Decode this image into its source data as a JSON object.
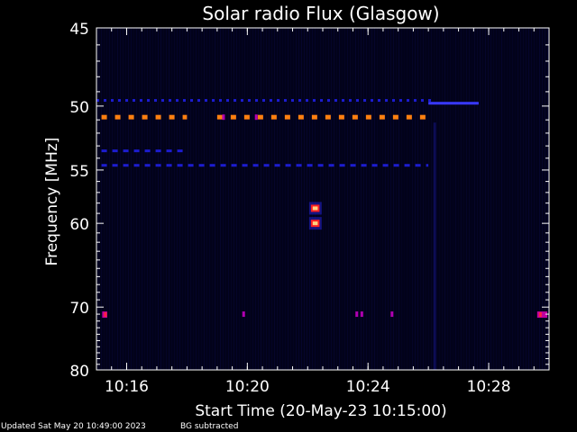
{
  "chart_data": {
    "type": "heatmap",
    "title": "Solar radio Flux (Glasgow)",
    "xlabel": "Start Time (20-May-23 10:15:00)",
    "ylabel": "Frequency [MHz]",
    "xlim": [
      "10:15:00",
      "10:30:00"
    ],
    "ylim": [
      80,
      45
    ],
    "y_scale": "reciprocal",
    "x_ticks": [
      "10:16",
      "10:20",
      "10:24",
      "10:28"
    ],
    "y_ticks": [
      45,
      50,
      55,
      60,
      70,
      80
    ],
    "grid": false,
    "colormap": [
      "#000010",
      "#1010a0",
      "#3030ff",
      "#c000c0",
      "#ff2020",
      "#ff9020",
      "#ffd080"
    ],
    "features": [
      {
        "name": "",
        "freq_mhz": 50.8,
        "start": "10:15:10",
        "end": "10:18:00",
        "intensity": "high",
        "style": "dashed"
      },
      {
        "name": "",
        "freq_mhz": 50.8,
        "start": "10:19:00",
        "end": "10:26:00",
        "intensity": "high",
        "style": "dashed"
      },
      {
        "name": "",
        "freq_mhz": 49.6,
        "start": "10:15:00",
        "end": "10:26:10",
        "intensity": "low",
        "style": "dotted"
      },
      {
        "name": "",
        "freq_mhz": 49.8,
        "start": "10:26:00",
        "end": "10:27:40",
        "intensity": "low",
        "style": "solid"
      },
      {
        "name": "",
        "freq_mhz": 53.4,
        "start": "10:15:10",
        "end": "10:18:00",
        "intensity": "low",
        "style": "dashed"
      },
      {
        "name": "",
        "freq_mhz": 54.6,
        "start": "10:15:10",
        "end": "10:26:00",
        "intensity": "low",
        "style": "dashed"
      },
      {
        "name": "",
        "freq_mhz": 58.5,
        "start": "10:22:10",
        "end": "10:22:20",
        "intensity": "high",
        "style": "burst"
      },
      {
        "name": "",
        "freq_mhz": 60.0,
        "start": "10:22:10",
        "end": "10:22:20",
        "intensity": "high",
        "style": "burst"
      },
      {
        "name": "",
        "freq_mhz": 71.0,
        "start": "10:15:15",
        "end": "10:15:25",
        "intensity": "medium",
        "style": "spot"
      },
      {
        "name": "",
        "freq_mhz": 71.0,
        "start": "10:29:40",
        "end": "10:30:00",
        "intensity": "medium",
        "style": "spot"
      }
    ]
  },
  "footer": {
    "updated": "Updated Sat May 20 10:49:00 2023",
    "note": "BG subtracted"
  }
}
